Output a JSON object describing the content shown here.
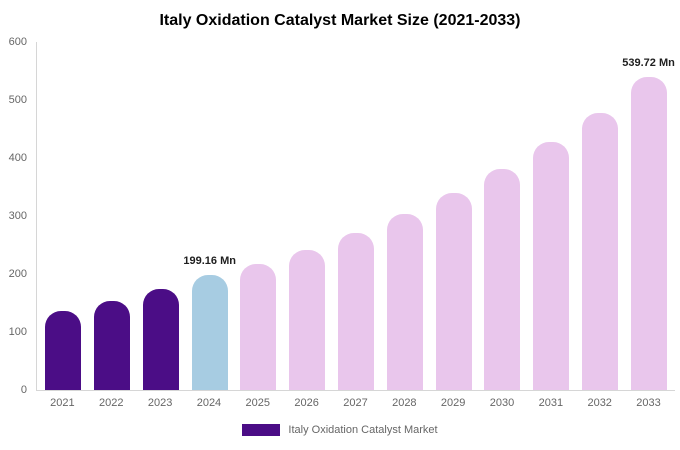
{
  "chart_data": {
    "type": "bar",
    "title": "Italy Oxidation Catalyst Market Size (2021-2033)",
    "categories": [
      "2021",
      "2022",
      "2023",
      "2024",
      "2025",
      "2026",
      "2027",
      "2028",
      "2029",
      "2030",
      "2031",
      "2032",
      "2033"
    ],
    "values": [
      137,
      154,
      174,
      199.16,
      217,
      242,
      270,
      303,
      340,
      381,
      427,
      478,
      539.72
    ],
    "bar_colors": [
      "#4b0d86",
      "#4b0d86",
      "#4b0d86",
      "#a7cce2",
      "#e9c6ec",
      "#e9c6ec",
      "#e9c6ec",
      "#e9c6ec",
      "#e9c6ec",
      "#e9c6ec",
      "#e9c6ec",
      "#e9c6ec",
      "#e9c6ec"
    ],
    "annotations": [
      {
        "index": 3,
        "label": "199.16 Mn"
      },
      {
        "index": 12,
        "label": "539.72 Mn"
      }
    ],
    "xlabel": "",
    "ylabel": "",
    "ylim": [
      0,
      600
    ],
    "yticks": [
      0,
      100,
      200,
      300,
      400,
      500,
      600
    ],
    "grid": false,
    "legend_position": "bottom",
    "series_colors": {
      "historical": "#4b0d86",
      "highlight": "#a7cce2",
      "forecast": "#e9c6ec"
    }
  },
  "legend": {
    "label": "Italy Oxidation Catalyst Market",
    "swatch_color": "#4b0d86"
  },
  "axis": {
    "line_color": "#d6d6d6",
    "tick_text_color": "#666666"
  }
}
